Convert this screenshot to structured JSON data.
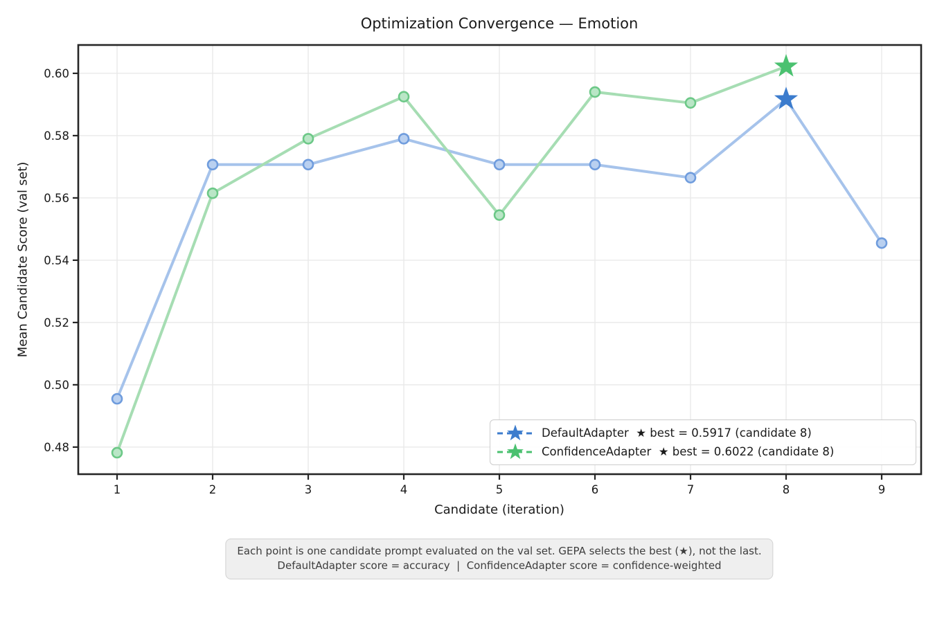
{
  "figure": {
    "title": "Optimization Convergence — Emotion",
    "xlabel": "Candidate (iteration)",
    "ylabel": "Mean Candidate Score (val set)",
    "footnote_line1": "Each point is one candidate prompt evaluated on the val set. GEPA selects the best (★), not the last.",
    "footnote_line2": "DefaultAdapter score = accuracy  |  ConfidenceAdapter score = confidence-weighted"
  },
  "chart_data": {
    "type": "line",
    "title": "Optimization Convergence — Emotion",
    "xlabel": "Candidate (iteration)",
    "ylabel": "Mean Candidate Score (val set)",
    "grid": true,
    "legend_position": "lower right",
    "x_ticks": [
      1,
      2,
      3,
      4,
      5,
      6,
      7,
      8,
      9
    ],
    "y_ticks": [
      0.48,
      0.5,
      0.52,
      0.54,
      0.56,
      0.58,
      0.6
    ],
    "xlim": [
      0.594,
      9.413
    ],
    "ylim": [
      0.4713,
      0.6091
    ],
    "colors": {
      "grid": "#e9e9e9",
      "spine": "#262626",
      "text": "#1a1a1a"
    },
    "series": [
      {
        "name": "DefaultAdapter",
        "x": [
          1,
          2,
          3,
          4,
          5,
          6,
          7,
          8,
          9
        ],
        "values": [
          0.4955,
          0.5707,
          0.5707,
          0.579,
          0.5707,
          0.5707,
          0.5665,
          0.5917,
          0.5455
        ],
        "best": {
          "x": 8,
          "value": 0.5917
        },
        "line_color": "#a6c3eb",
        "marker_edge": "#6f9cdd",
        "marker_face": "#b9d0f0",
        "star_color": "#3c7ccd",
        "legend_label": "DefaultAdapter  ★ best = 0.5917 (candidate 8)"
      },
      {
        "name": "ConfidenceAdapter",
        "x": [
          1,
          2,
          3,
          4,
          5,
          6,
          7,
          8
        ],
        "values": [
          0.4782,
          0.5615,
          0.579,
          0.5925,
          0.5545,
          0.594,
          0.5905,
          0.6022
        ],
        "best": {
          "x": 8,
          "value": 0.6022
        },
        "line_color": "#a6ddb3",
        "marker_edge": "#6cc887",
        "marker_face": "#b9e6c6",
        "star_color": "#4bc170",
        "legend_label": "ConfidenceAdapter  ★ best = 0.6022 (candidate 8)"
      }
    ]
  }
}
